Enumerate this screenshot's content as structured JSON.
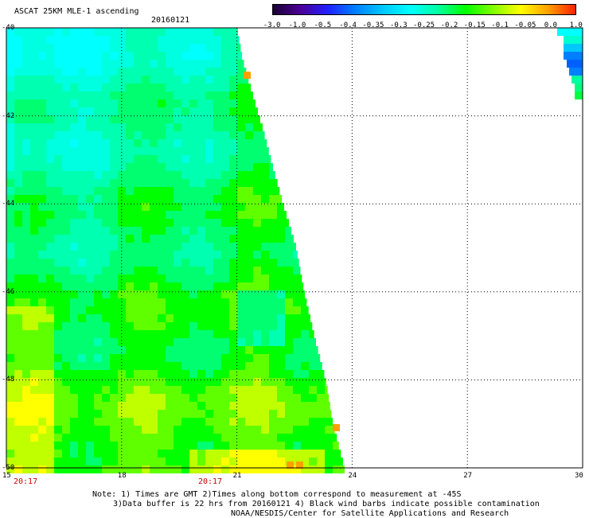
{
  "header": {
    "title": "ASCAT 25KM MLE-1 ascending",
    "date": "20160121"
  },
  "colorbar": {
    "labels": [
      "-3.0",
      "-1.0",
      "-0.5",
      "-0.4",
      "-0.35",
      "-0.3",
      "-0.25",
      "-0.2",
      "-0.15",
      "-0.1",
      "-0.05",
      "0.0",
      "1.0"
    ],
    "colors": [
      "#1a0033",
      "#4b0096",
      "#2020ff",
      "#0080ff",
      "#00c8ff",
      "#00ffff",
      "#00ffa0",
      "#00ff00",
      "#80ff00",
      "#ffff00",
      "#ffa000",
      "#ff2000"
    ]
  },
  "map": {
    "lon_labels": [
      "15",
      "18",
      "21",
      "24",
      "27",
      "30"
    ],
    "lat_labels": [
      "-40",
      "-42",
      "-44",
      "-46",
      "-48",
      "-50"
    ],
    "times": [
      "20:17",
      "20:17"
    ]
  },
  "footer": {
    "note1": "Note: 1) Times are GMT 2)Times along bottom correspond to measurement at -45S",
    "note2": "3)Data buffer is 22 hrs from 20160121 4) Black wind barbs indicate possible contamination",
    "note3": "NOAA/NESDIS/Center for Satellite Applications and Research"
  }
}
